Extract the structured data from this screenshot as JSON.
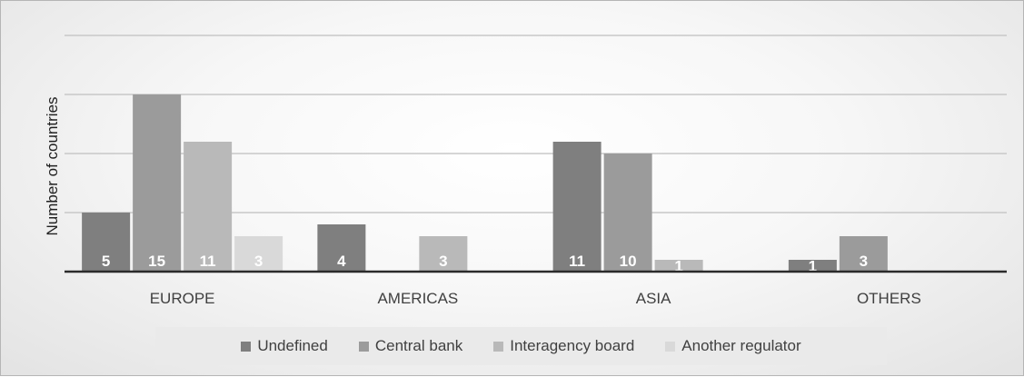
{
  "chart_data": {
    "type": "bar",
    "categories": [
      "EUROPE",
      "AMERICAS",
      "ASIA",
      "OTHERS"
    ],
    "series": [
      {
        "name": "Undefined",
        "color": "#7f7f7f",
        "values": [
          5,
          4,
          11,
          1
        ]
      },
      {
        "name": "Central bank",
        "color": "#9b9b9b",
        "values": [
          15,
          null,
          10,
          3
        ]
      },
      {
        "name": "Interagency board",
        "color": "#b9b9b9",
        "values": [
          11,
          3,
          1,
          null
        ]
      },
      {
        "name": "Another regulator",
        "color": "#d9d9d9",
        "values": [
          3,
          null,
          null,
          null
        ]
      }
    ],
    "ylabel": "Number of countries",
    "xlabel": "",
    "ylim": [
      0,
      20
    ],
    "y_tick_step": 5,
    "y_tick_labels_shown": false,
    "grid": true,
    "legend_position": "bottom",
    "data_labels": true
  }
}
